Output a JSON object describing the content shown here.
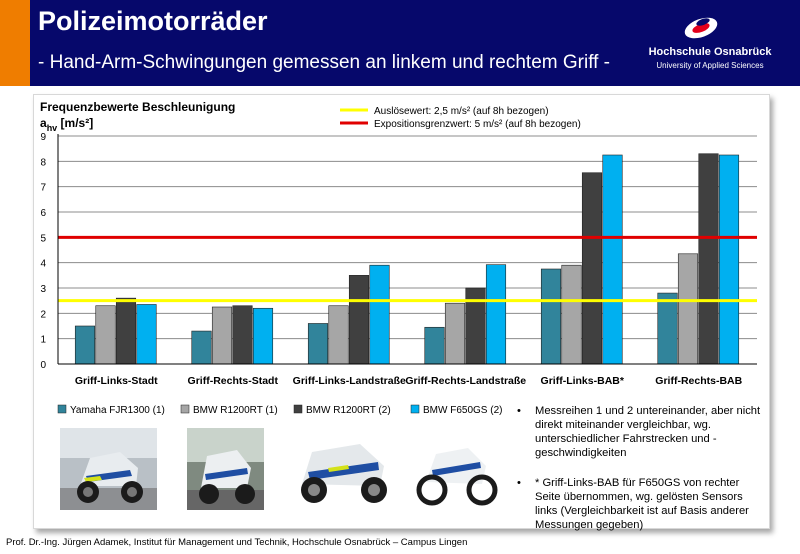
{
  "header": {
    "title": "Polizeimotorräder",
    "subtitle": "- Hand-Arm-Schwingungen gemessen an linkem und rechtem Griff -",
    "accent_color": "#ef7d00",
    "background_color": "#06086b"
  },
  "logo": {
    "name": "Hochschule Osnabrück",
    "sub": "University of Applied Sciences",
    "icon": "hochschule-logo-icon"
  },
  "chart_data": {
    "type": "bar",
    "title": "Frequenzbewerte Beschleunigung",
    "ylabel_main": "a",
    "ylabel_sub": "hv",
    "ylabel_unit": " [m/s²]",
    "ylim": [
      0,
      9
    ],
    "yticks": [
      "0",
      "1",
      "2",
      "3",
      "4",
      "5",
      "6",
      "7",
      "8",
      "9"
    ],
    "grid": true,
    "categories": [
      "Griff-Links-Stadt",
      "Griff-Rechts-Stadt",
      "Griff-Links-Landstraße",
      "Griff-Rechts-Landstraße",
      "Griff-Links-BAB*",
      "Griff-Rechts-BAB"
    ],
    "series": [
      {
        "name": "Yamaha FJR1300 (1)",
        "color": "#31849b",
        "values": [
          1.5,
          1.3,
          1.6,
          1.45,
          3.75,
          2.8
        ]
      },
      {
        "name": "BMW R1200RT (1)",
        "color": "#a6a6a6",
        "values": [
          2.3,
          2.25,
          2.3,
          2.4,
          3.9,
          4.35
        ]
      },
      {
        "name": "BMW R1200RT (2)",
        "color": "#404040",
        "values": [
          2.6,
          2.3,
          3.5,
          3.0,
          7.55,
          8.3
        ]
      },
      {
        "name": "BMW F650GS (2)",
        "color": "#00b0f0",
        "values": [
          2.35,
          2.2,
          3.9,
          3.92,
          8.25,
          8.25
        ]
      }
    ],
    "reference_lines": [
      {
        "label": "Auslösewert: 2,5 m/s² (auf 8h bezogen)",
        "value": 2.5,
        "color": "#ffff00"
      },
      {
        "label": "Expositionsgrenzwert: 5 m/s² (auf 8h bezogen)",
        "value": 5,
        "color": "#e00000"
      }
    ]
  },
  "notes": [
    "Messreihen 1 und 2 untereinander, aber nicht direkt miteinander vergleichbar, wg. unterschiedlicher Fahrstrecken und -geschwindigkeiten",
    "* Griff-Links-BAB für F650GS von rechter Seite übernommen, wg. gelösten Sensors links (Vergleichbarkeit ist auf Basis anderer Messungen gegeben)"
  ],
  "photos": [
    "yamaha-fjr1300-photo",
    "bmw-r1200rt-1-photo",
    "bmw-r1200rt-2-photo",
    "bmw-f650gs-photo"
  ],
  "footer": "Prof. Dr.-Ing. Jürgen Adamek,  Institut für Management und Technik, Hochschule Osnabrück – Campus Lingen"
}
